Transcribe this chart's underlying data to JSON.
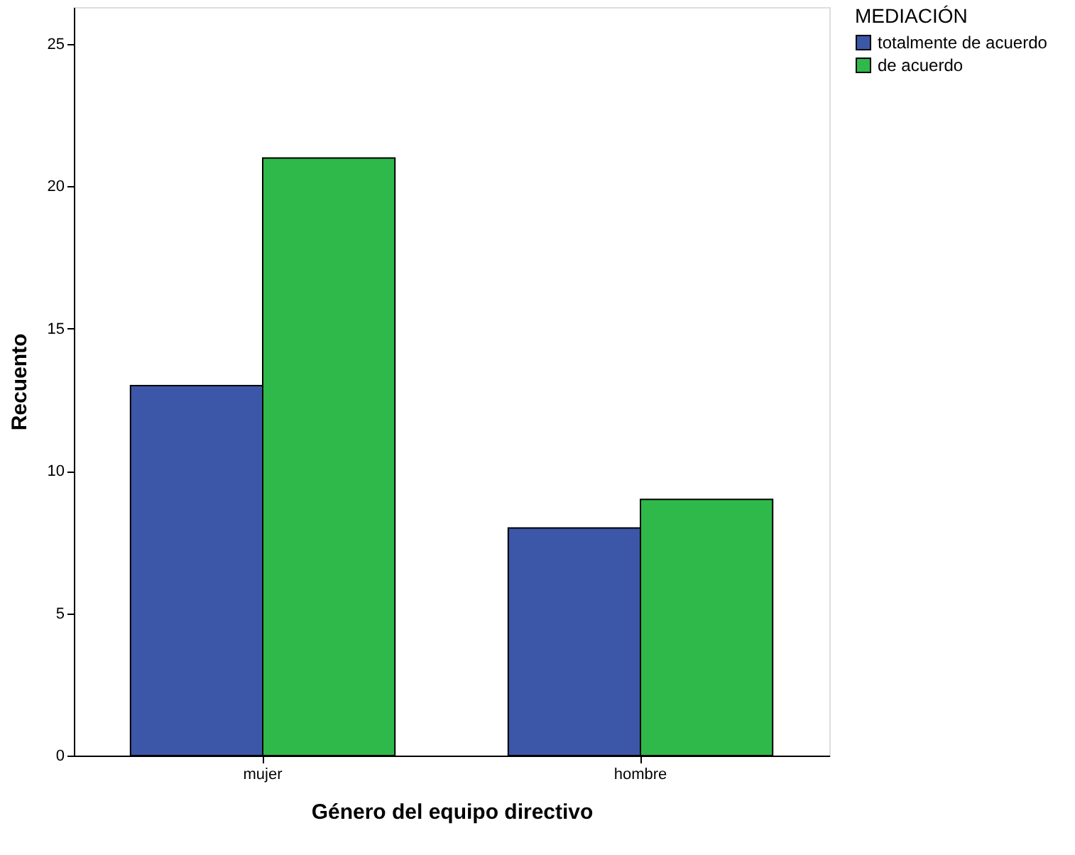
{
  "chart_data": {
    "type": "bar",
    "xlabel": "Género del equipo directivo",
    "ylabel": "Recuento",
    "legend_title": "MEDIACIÓN",
    "categories": [
      "mujer",
      "hombre"
    ],
    "series": [
      {
        "name": "totalmente de acuerdo",
        "color": "#3c57a8",
        "values": [
          13,
          8
        ]
      },
      {
        "name": "de acuerdo",
        "color": "#2fb94a",
        "values": [
          21,
          9
        ]
      }
    ],
    "ylim": [
      0,
      26.3
    ],
    "yticks": [
      0,
      5,
      10,
      15,
      20,
      25
    ],
    "grid": false,
    "legend": "top right"
  }
}
